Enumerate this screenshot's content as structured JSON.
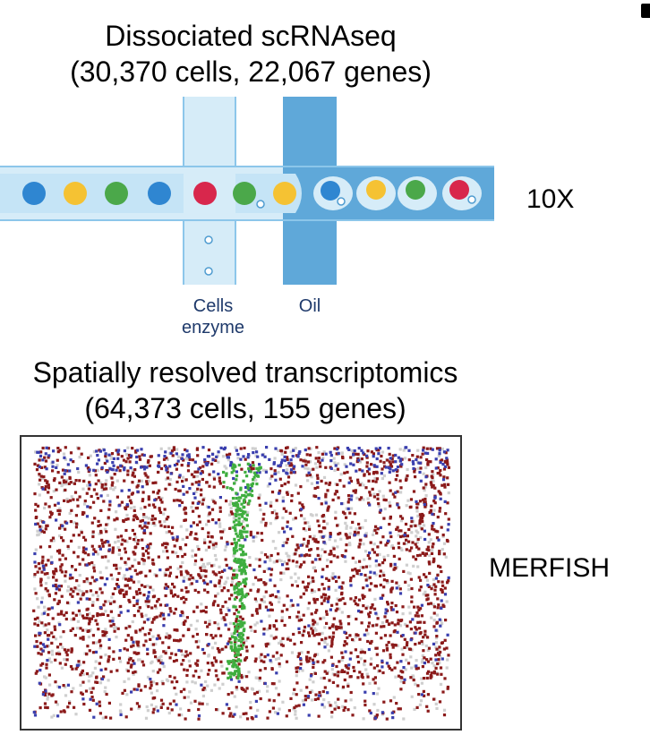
{
  "top_section": {
    "title_line1": "Dissociated scRNAseq",
    "title_line2": "(30,370 cells, 22,067 genes)",
    "method_label": "10X",
    "inlet_cells_label_line1": "Cells",
    "inlet_cells_label_line2": "enzyme",
    "inlet_oil_label": "Oil"
  },
  "bottom_section": {
    "title_line1": "Spatially resolved transcriptomics",
    "title_line2": "(64,373 cells, 155 genes)",
    "method_label": "MERFISH"
  },
  "colors": {
    "channel_light": "#d6ecf8",
    "channel_mid": "#a9d6f1",
    "channel_oil": "#5fa8d9",
    "cell_blue": "#2f86d1",
    "cell_yellow": "#f5c233",
    "cell_green": "#4ba84a",
    "cell_red": "#d8274c",
    "spot_red": "#8b1a1a",
    "spot_blue": "#3a3fae",
    "spot_grey": "#cfcfcf",
    "spot_green": "#3fae3f"
  }
}
